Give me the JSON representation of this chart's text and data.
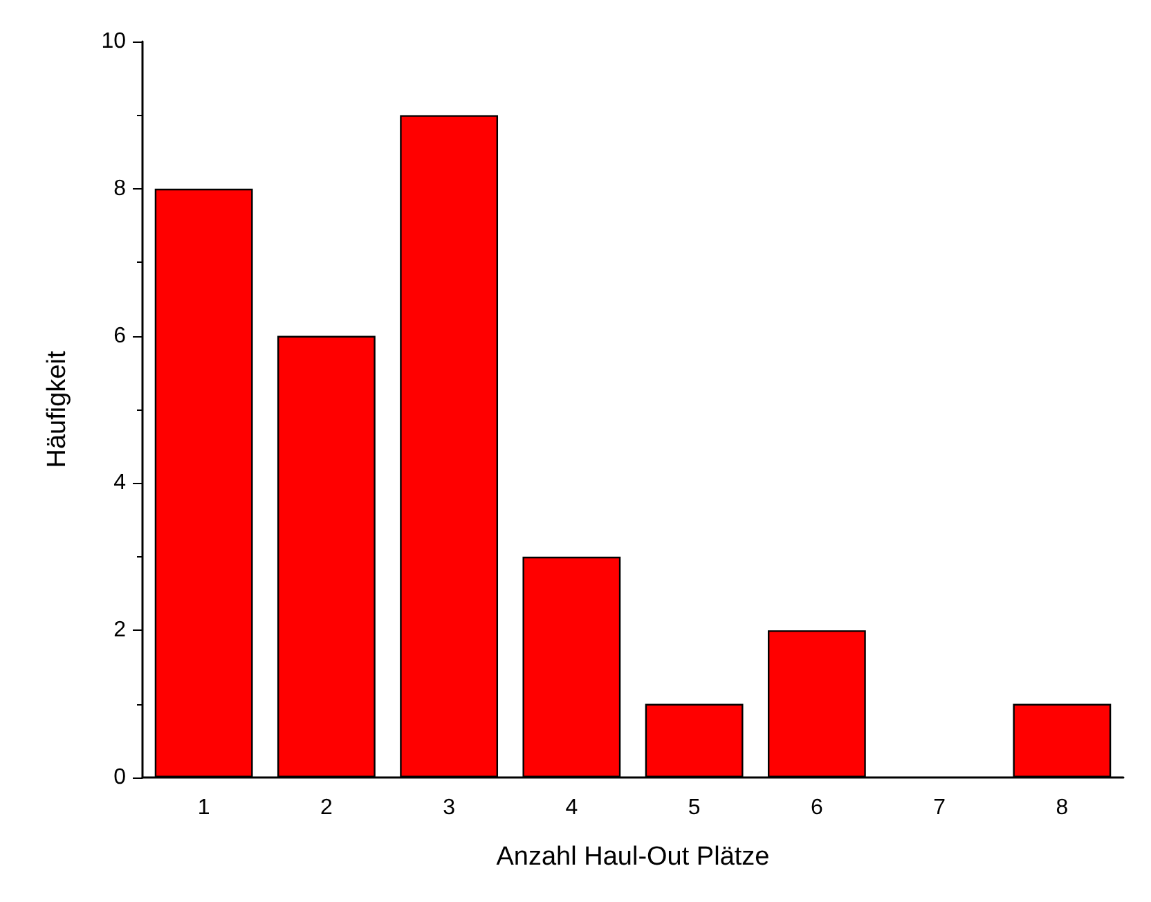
{
  "chart_data": {
    "type": "bar",
    "xlabel": "Anzahl Haul-Out Plätze",
    "ylabel": "Häufigkeit",
    "categories": [
      "1",
      "2",
      "3",
      "4",
      "5",
      "6",
      "7",
      "8"
    ],
    "values": [
      8,
      6,
      9,
      3,
      1,
      2,
      0,
      1
    ],
    "color": "#ff0000",
    "ylim": [
      0,
      10
    ],
    "yticks": [
      0,
      2,
      4,
      6,
      8,
      10
    ],
    "grid": false
  }
}
